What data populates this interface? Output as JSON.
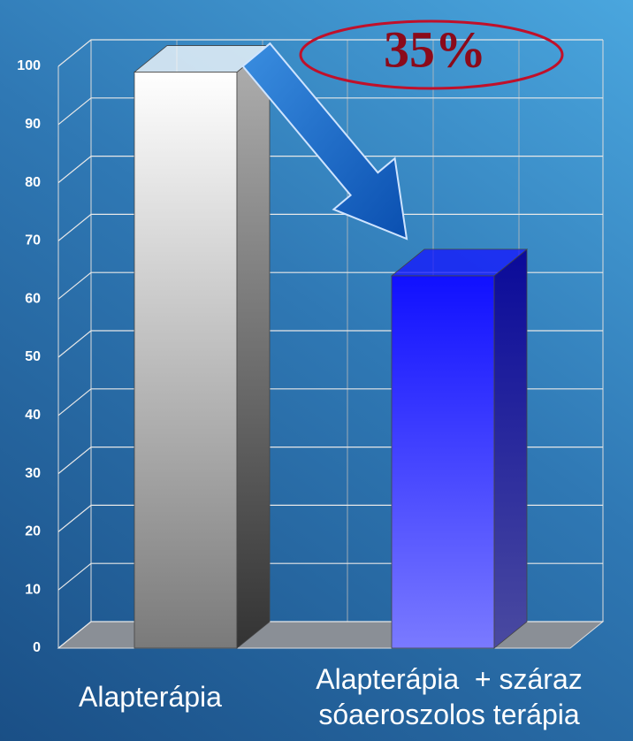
{
  "chart_data": {
    "type": "bar3d",
    "categories": [
      "Alapterápia",
      "Alapterápia  + száraz sóaeroszolos terápia"
    ],
    "values": [
      99,
      64
    ],
    "colors": [
      "#ffffff",
      "#1414ff"
    ],
    "ylim": [
      0,
      100
    ],
    "yticks": [
      0,
      10,
      20,
      30,
      40,
      50,
      60,
      70,
      80,
      90,
      100
    ],
    "grid": true,
    "annotation": "35%"
  }
}
